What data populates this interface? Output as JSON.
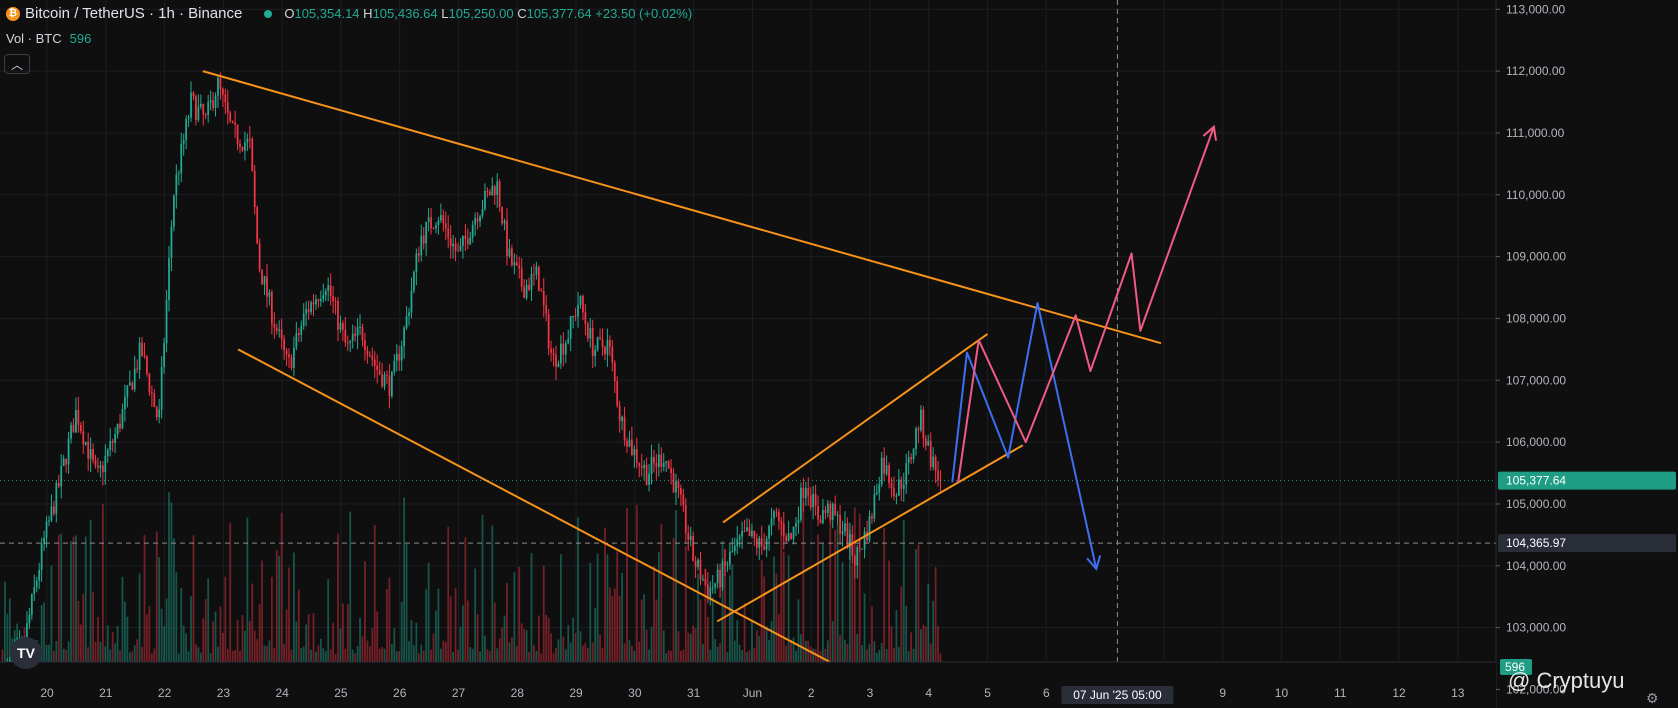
{
  "header": {
    "symbol_title": "Bitcoin / TetherUS · 1h · Binance",
    "coin_icon": "bitcoin-icon",
    "ohlc": {
      "o_label": "O",
      "o": "105,354.14",
      "h_label": "H",
      "h": "105,436.64",
      "l_label": "L",
      "l": "105,250.00",
      "c_label": "C",
      "c": "105,377.64",
      "change": "+23.50 (+0.02%)"
    },
    "volume_label": "Vol · BTC",
    "volume_value": "596",
    "collapse_icon": "chevron-up-icon"
  },
  "watermark": "@ Cryptuyu",
  "tv_logo": "tradingview-logo-icon",
  "colors": {
    "background": "#0f0f0f",
    "up": "#22ab94",
    "down": "#f23645",
    "trendline": "#f7931a",
    "bearish_path": "#3d6ff2",
    "bullish_path": "#f25a86",
    "price_tag": "#1f9c84"
  },
  "chart_data": {
    "type": "candlestick",
    "title": "Bitcoin / TetherUS · 1h · Binance",
    "y_axis": {
      "position": "right",
      "min": 101700,
      "max": 113150,
      "ticks": [
        102000,
        103000,
        104000,
        105000,
        106000,
        107000,
        108000,
        109000,
        110000,
        111000,
        112000,
        113000
      ],
      "tick_labels": [
        "102,000.00",
        "103,000.00",
        "104,000.00",
        "105,000.00",
        "106,000.00",
        "107,000.00",
        "108,000.00",
        "109,000.00",
        "110,000.00",
        "111,000.00",
        "112,000.00",
        "113,000.00"
      ]
    },
    "x_axis": {
      "labels": [
        "20",
        "21",
        "22",
        "23",
        "24",
        "25",
        "26",
        "27",
        "28",
        "29",
        "30",
        "31",
        "Jun",
        "2",
        "3",
        "4",
        "5",
        "6",
        "07 Jun '25",
        "9",
        "10",
        "11",
        "12",
        "13"
      ],
      "label_days": [
        20,
        21,
        22,
        23,
        24,
        25,
        26,
        27,
        28,
        29,
        30,
        31,
        32,
        33,
        34,
        35,
        36,
        37,
        39,
        40,
        41,
        42,
        43,
        44
      ],
      "crosshair_label": "07 Jun '25  05:00",
      "crosshair_day": 38.21,
      "day_range": [
        19.2,
        44.65
      ]
    },
    "price_levels": [
      {
        "label": "105,377.64",
        "value": 105377.64,
        "style": "last-price"
      },
      {
        "label": "104,365.97",
        "value": 104365.97,
        "style": "crosshair"
      }
    ],
    "volume_tag": "596",
    "anchor_closes": [
      [
        19.2,
        102100
      ],
      [
        19.6,
        102700
      ],
      [
        19.95,
        104400
      ],
      [
        20.2,
        105300
      ],
      [
        20.5,
        106500
      ],
      [
        20.85,
        105400
      ],
      [
        21.2,
        106200
      ],
      [
        21.6,
        107500
      ],
      [
        21.9,
        106300
      ],
      [
        22.15,
        110000
      ],
      [
        22.45,
        111500
      ],
      [
        22.7,
        111200
      ],
      [
        22.9,
        111800
      ],
      [
        23.15,
        111000
      ],
      [
        23.45,
        110800
      ],
      [
        23.6,
        108900
      ],
      [
        23.85,
        108000
      ],
      [
        24.1,
        107200
      ],
      [
        24.4,
        108100
      ],
      [
        24.75,
        108600
      ],
      [
        25.1,
        107500
      ],
      [
        25.35,
        107800
      ],
      [
        25.6,
        107200
      ],
      [
        25.85,
        106900
      ],
      [
        26.1,
        107900
      ],
      [
        26.35,
        109300
      ],
      [
        26.65,
        109700
      ],
      [
        27.0,
        109000
      ],
      [
        27.3,
        109700
      ],
      [
        27.65,
        110200
      ],
      [
        27.85,
        109000
      ],
      [
        28.1,
        108500
      ],
      [
        28.35,
        108700
      ],
      [
        28.6,
        107300
      ],
      [
        28.85,
        107700
      ],
      [
        29.05,
        108300
      ],
      [
        29.3,
        107500
      ],
      [
        29.55,
        107600
      ],
      [
        29.75,
        106400
      ],
      [
        29.95,
        105900
      ],
      [
        30.2,
        105500
      ],
      [
        30.5,
        105800
      ],
      [
        30.75,
        105100
      ],
      [
        31.0,
        104100
      ],
      [
        31.25,
        103600
      ],
      [
        31.45,
        103800
      ],
      [
        31.65,
        104200
      ],
      [
        31.9,
        104500
      ],
      [
        32.15,
        104300
      ],
      [
        32.4,
        104800
      ],
      [
        32.65,
        104400
      ],
      [
        32.9,
        105400
      ],
      [
        33.1,
        104800
      ],
      [
        33.3,
        104900
      ],
      [
        33.55,
        104600
      ],
      [
        33.75,
        104100
      ],
      [
        34.0,
        104700
      ],
      [
        34.2,
        105700
      ],
      [
        34.45,
        105200
      ],
      [
        34.65,
        105600
      ],
      [
        34.85,
        106400
      ],
      [
        35.05,
        105700
      ],
      [
        35.2,
        105377.64
      ]
    ],
    "trendlines": [
      {
        "name": "upper-wedge-line",
        "from": [
          22.65,
          112000
        ],
        "to": [
          38.95,
          107600
        ]
      },
      {
        "name": "lower-wedge-line",
        "from": [
          23.25,
          107500
        ],
        "to": [
          34.7,
          101750
        ]
      },
      {
        "name": "channel-upper-line",
        "from": [
          31.5,
          104700
        ],
        "to": [
          36.0,
          107750
        ]
      },
      {
        "name": "channel-lower-line",
        "from": [
          31.4,
          103100
        ],
        "to": [
          36.6,
          105950
        ]
      }
    ],
    "projections": [
      {
        "name": "bearish-path",
        "points": [
          [
            35.4,
            105350
          ],
          [
            35.65,
            107450
          ],
          [
            36.35,
            105750
          ],
          [
            36.85,
            108250
          ],
          [
            37.85,
            103950
          ]
        ],
        "arrow_end": true
      },
      {
        "name": "bullish-path",
        "points": [
          [
            35.5,
            105350
          ],
          [
            35.85,
            107650
          ],
          [
            36.65,
            106000
          ],
          [
            37.5,
            108050
          ],
          [
            37.75,
            107150
          ],
          [
            38.45,
            109050
          ],
          [
            38.6,
            107800
          ],
          [
            39.85,
            111100
          ]
        ],
        "arrow_end": true
      }
    ]
  }
}
